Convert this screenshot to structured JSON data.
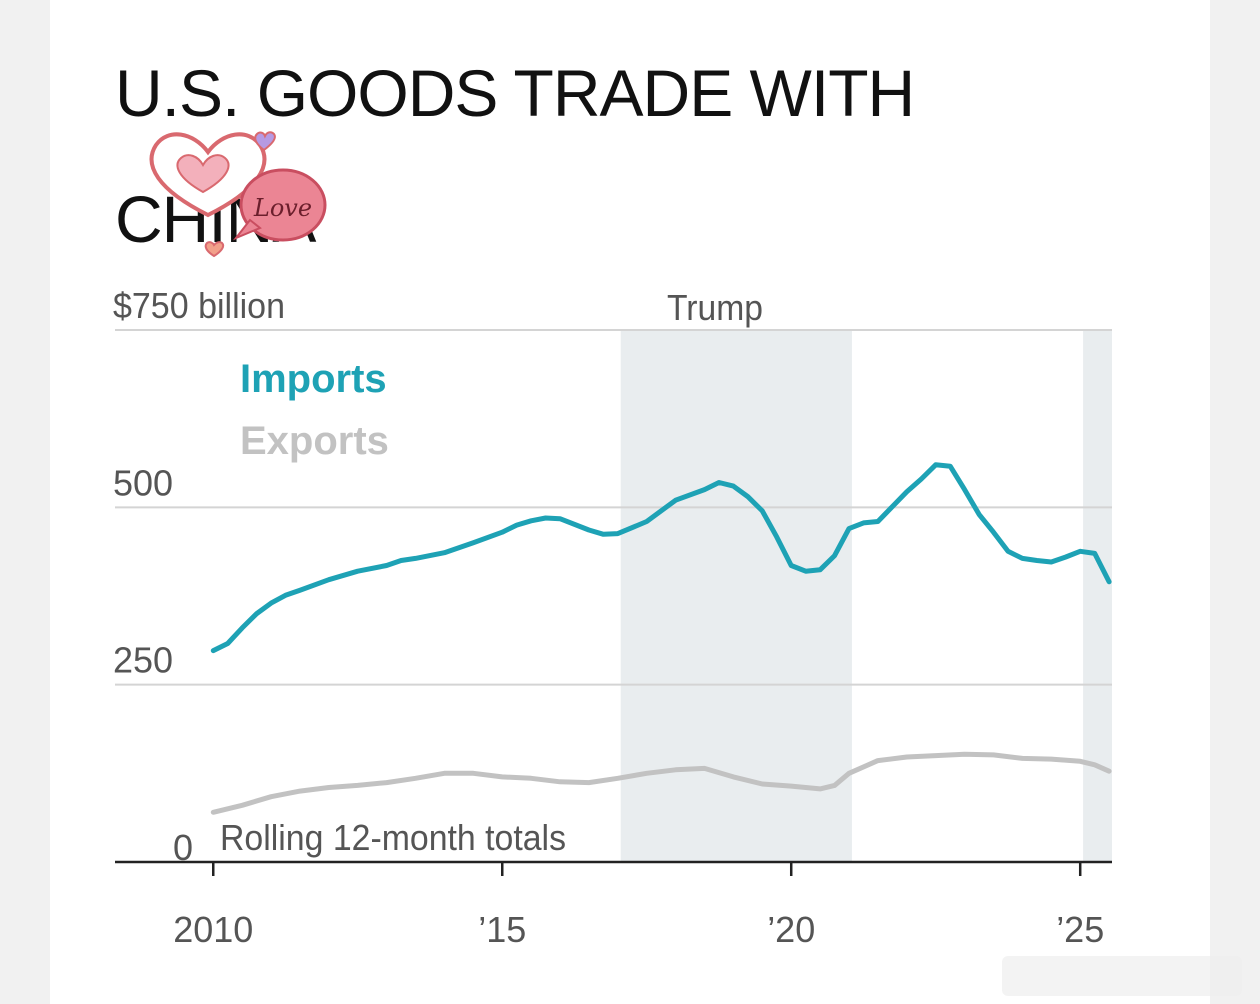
{
  "title": "U.S. GOODS TRADE WITH CHINA",
  "sticker": {
    "icon": "love-heart-sticker-icon",
    "text": "Love"
  },
  "colors": {
    "imports": "#1ea2b5",
    "exports": "#c2c2c2",
    "shade": "#e9edef",
    "grid": "#d4d4d4",
    "axis": "#222222",
    "text": "#555555"
  },
  "chart_data": {
    "type": "line",
    "title": "U.S. GOODS TRADE WITH CHINA",
    "subtitle": "Rolling 12-month totals",
    "ylabel": "$750 billion",
    "y_ticks": [
      0,
      250,
      500,
      750
    ],
    "y_tick_labels": [
      "0",
      "250",
      "500",
      "$750 billion"
    ],
    "ylim": [
      0,
      750
    ],
    "xlim": [
      2008.3,
      2025.55
    ],
    "x_ticks": [
      2010,
      2015,
      2020,
      2025
    ],
    "x_tick_labels": [
      "2010",
      "’15",
      "’20",
      "’25"
    ],
    "grid": true,
    "legend": [
      "Imports",
      "Exports"
    ],
    "legend_placement": "top-left",
    "shaded_periods": [
      {
        "label": "Trump",
        "start": 2017.05,
        "end": 2021.05
      },
      {
        "label": "",
        "start": 2025.05,
        "end": 2025.55
      }
    ],
    "series": [
      {
        "name": "Imports",
        "x": [
          2010.0,
          2010.25,
          2010.5,
          2010.75,
          2011.0,
          2011.25,
          2011.5,
          2012.0,
          2012.5,
          2013.0,
          2013.25,
          2013.5,
          2014.0,
          2014.5,
          2015.0,
          2015.25,
          2015.5,
          2015.75,
          2016.0,
          2016.5,
          2016.75,
          2017.0,
          2017.5,
          2018.0,
          2018.5,
          2018.75,
          2019.0,
          2019.25,
          2019.5,
          2019.75,
          2020.0,
          2020.25,
          2020.5,
          2020.75,
          2021.0,
          2021.25,
          2021.5,
          2022.0,
          2022.25,
          2022.5,
          2022.75,
          2023.0,
          2023.25,
          2023.5,
          2023.75,
          2024.0,
          2024.25,
          2024.5,
          2024.75,
          2025.0,
          2025.25,
          2025.5
        ],
        "values": [
          298,
          308,
          330,
          350,
          365,
          376,
          383,
          398,
          410,
          418,
          425,
          428,
          436,
          450,
          465,
          475,
          481,
          485,
          484,
          468,
          462,
          463,
          480,
          510,
          525,
          535,
          530,
          515,
          495,
          458,
          418,
          410,
          412,
          432,
          470,
          478,
          480,
          522,
          540,
          560,
          558,
          525,
          490,
          465,
          438,
          428,
          425,
          423,
          430,
          438,
          435,
          395
        ]
      },
      {
        "name": "Exports",
        "x": [
          2010.0,
          2010.5,
          2011.0,
          2011.5,
          2012.0,
          2012.5,
          2013.0,
          2013.5,
          2014.0,
          2014.5,
          2015.0,
          2015.5,
          2016.0,
          2016.5,
          2017.0,
          2017.5,
          2018.0,
          2018.5,
          2019.0,
          2019.5,
          2020.0,
          2020.5,
          2020.75,
          2021.0,
          2021.5,
          2022.0,
          2022.5,
          2023.0,
          2023.5,
          2024.0,
          2024.5,
          2025.0,
          2025.25,
          2025.5
        ],
        "values": [
          70,
          80,
          92,
          100,
          105,
          108,
          112,
          118,
          125,
          125,
          120,
          118,
          113,
          112,
          118,
          125,
          130,
          132,
          120,
          110,
          107,
          103,
          108,
          125,
          143,
          148,
          150,
          152,
          151,
          146,
          145,
          142,
          137,
          128
        ]
      }
    ]
  }
}
